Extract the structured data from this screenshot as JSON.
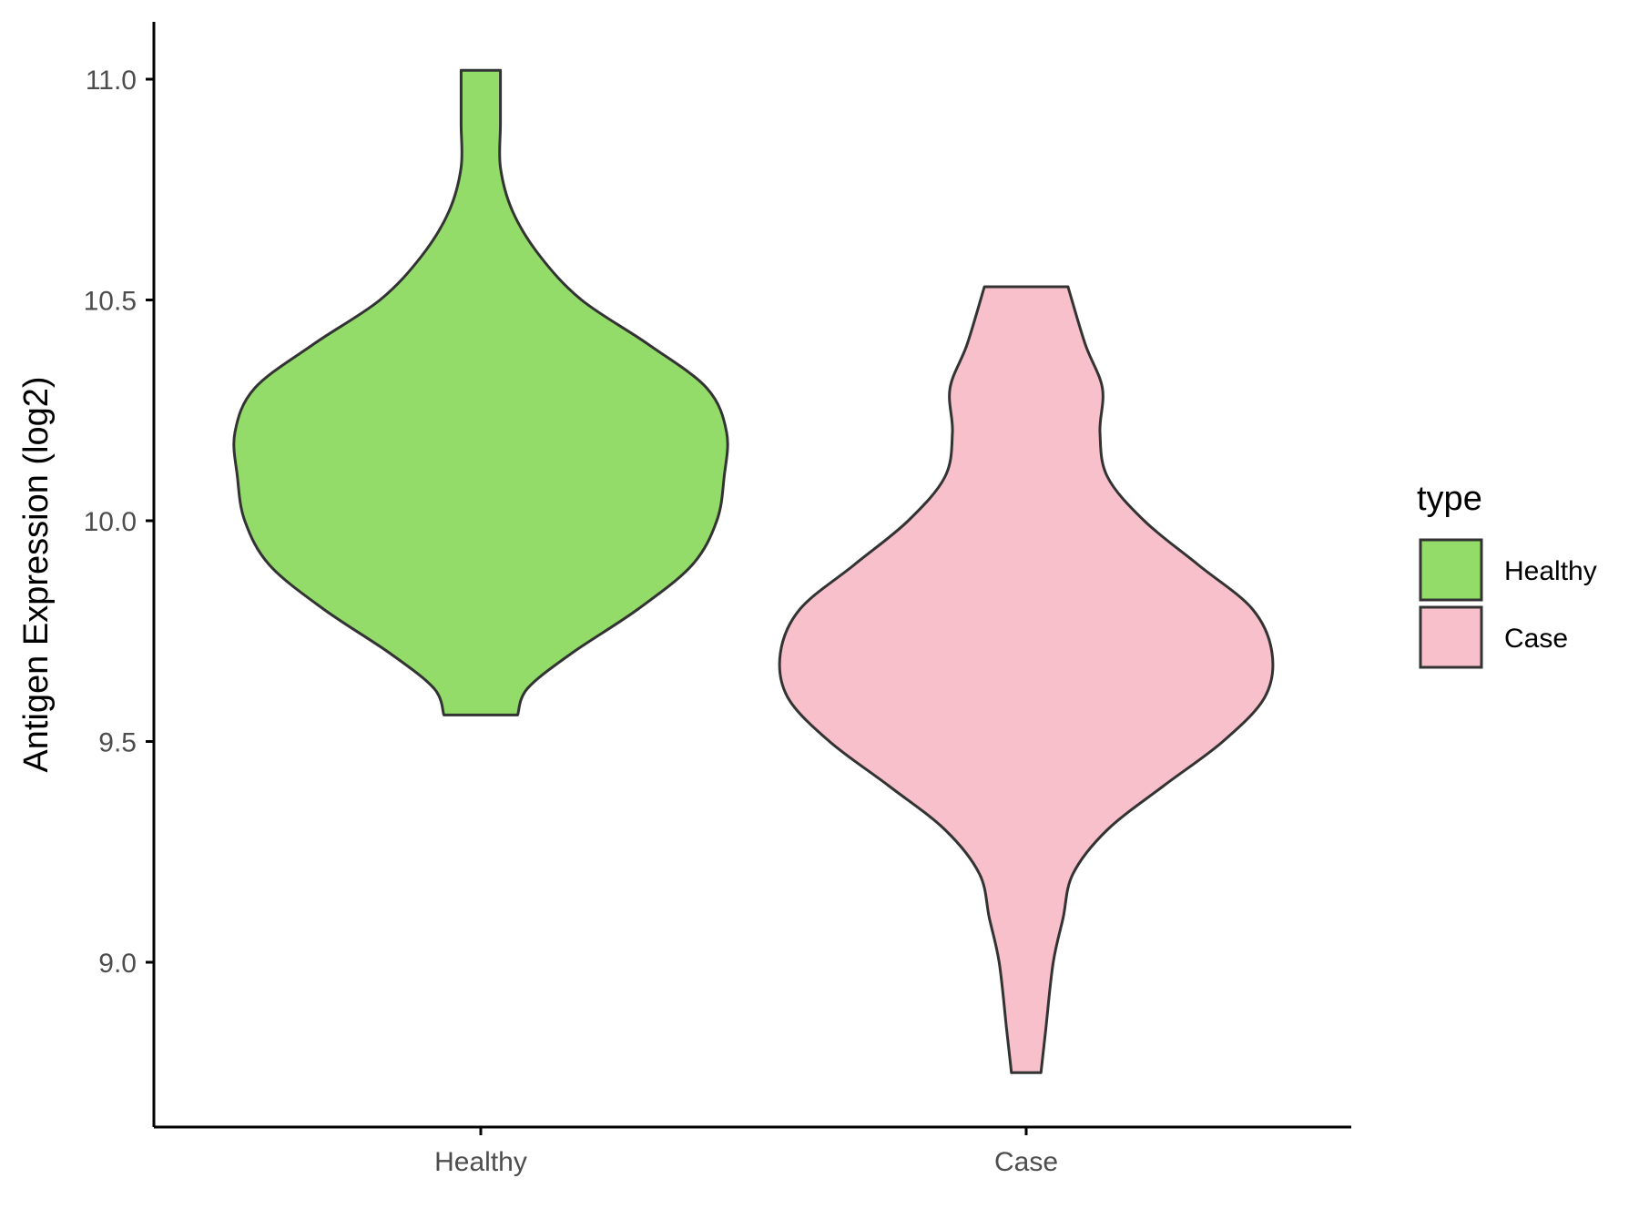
{
  "chart_data": {
    "type": "violin",
    "title": "",
    "xlabel": "",
    "ylabel": "Antigen Expression (log2)",
    "categories": [
      "Healthy",
      "Case"
    ],
    "y_ticks": [
      "9.0",
      "9.5",
      "10.0",
      "10.5",
      "11.0"
    ],
    "ylim": [
      8.63,
      11.13
    ],
    "grid": false,
    "legend": {
      "title": "type",
      "position": "right",
      "entries": [
        "Healthy",
        "Case"
      ]
    },
    "series": [
      {
        "name": "Healthy",
        "color": "#93DC6A",
        "min": 9.56,
        "max": 11.02,
        "density_profile": [
          [
            9.56,
            0.15
          ],
          [
            9.62,
            0.19
          ],
          [
            9.7,
            0.37
          ],
          [
            9.8,
            0.64
          ],
          [
            9.9,
            0.86
          ],
          [
            10.0,
            0.96
          ],
          [
            10.1,
            0.99
          ],
          [
            10.2,
            1.0
          ],
          [
            10.3,
            0.92
          ],
          [
            10.4,
            0.68
          ],
          [
            10.5,
            0.41
          ],
          [
            10.6,
            0.24
          ],
          [
            10.7,
            0.13
          ],
          [
            10.8,
            0.08
          ],
          [
            10.9,
            0.08
          ],
          [
            11.02,
            0.08
          ]
        ]
      },
      {
        "name": "Case",
        "color": "#F8C0CB",
        "min": 8.75,
        "max": 10.53,
        "density_profile": [
          [
            8.75,
            0.06
          ],
          [
            8.85,
            0.08
          ],
          [
            9.0,
            0.11
          ],
          [
            9.1,
            0.15
          ],
          [
            9.2,
            0.19
          ],
          [
            9.3,
            0.33
          ],
          [
            9.4,
            0.56
          ],
          [
            9.5,
            0.8
          ],
          [
            9.6,
            0.97
          ],
          [
            9.7,
            1.0
          ],
          [
            9.8,
            0.92
          ],
          [
            9.9,
            0.7
          ],
          [
            10.0,
            0.48
          ],
          [
            10.1,
            0.33
          ],
          [
            10.2,
            0.3
          ],
          [
            10.3,
            0.31
          ],
          [
            10.4,
            0.24
          ],
          [
            10.53,
            0.17
          ]
        ]
      }
    ]
  }
}
